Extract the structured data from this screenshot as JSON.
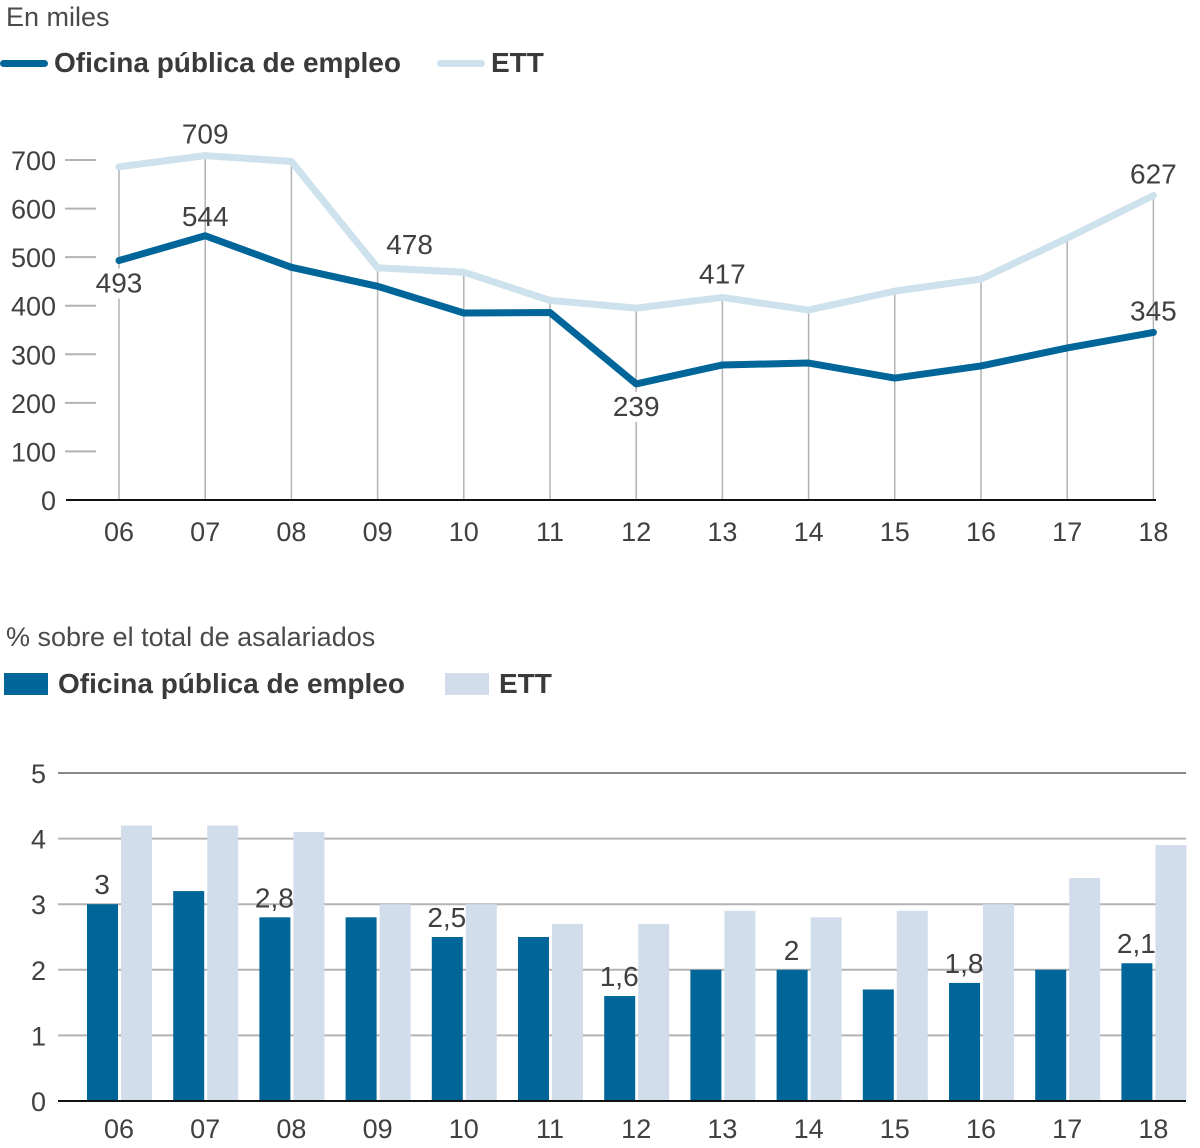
{
  "colors": {
    "oficina": "#006699",
    "ett_line": "#cde2ec",
    "ett_bar": "#d1ddeb",
    "grid": "#b3b3b3",
    "axis": "#111111"
  },
  "chart_data": [
    {
      "type": "line",
      "subtitle": "En miles",
      "legend": [
        "Oficina pública de empleo",
        "ETT"
      ],
      "legend_position": "top-left",
      "categories": [
        "06",
        "07",
        "08",
        "09",
        "10",
        "11",
        "12",
        "13",
        "14",
        "15",
        "16",
        "17",
        "18"
      ],
      "yticks": [
        "0",
        "100",
        "200",
        "300",
        "400",
        "500",
        "600",
        "700"
      ],
      "ylim": [
        0,
        700
      ],
      "grid": true,
      "series": [
        {
          "name": "Oficina pública de empleo",
          "values": [
            493,
            544,
            479,
            440,
            385,
            386,
            239,
            278,
            282,
            251,
            276,
            313,
            345
          ]
        },
        {
          "name": "ETT",
          "values": [
            686,
            709,
            697,
            478,
            469,
            411,
            395,
            417,
            391,
            430,
            455,
            539,
            627
          ]
        }
      ],
      "annotations": [
        {
          "series": 0,
          "index": 0,
          "text": "493"
        },
        {
          "series": 0,
          "index": 1,
          "text": "544"
        },
        {
          "series": 0,
          "index": 6,
          "text": "239"
        },
        {
          "series": 0,
          "index": 12,
          "text": "345"
        },
        {
          "series": 1,
          "index": 1,
          "text": "709"
        },
        {
          "series": 1,
          "index": 3,
          "text": "478"
        },
        {
          "series": 1,
          "index": 7,
          "text": "417"
        },
        {
          "series": 1,
          "index": 12,
          "text": "627"
        }
      ]
    },
    {
      "type": "bar",
      "subtitle": "% sobre el total de asalariados",
      "legend": [
        "Oficina pública de empleo",
        "ETT"
      ],
      "legend_position": "top-left",
      "categories": [
        "06",
        "07",
        "08",
        "09",
        "10",
        "11",
        "12",
        "13",
        "14",
        "15",
        "16",
        "17",
        "18"
      ],
      "yticks": [
        "0",
        "1",
        "2",
        "3",
        "4",
        "5"
      ],
      "ylim": [
        0,
        5
      ],
      "grid": true,
      "series": [
        {
          "name": "Oficina pública de empleo",
          "values": [
            3.0,
            3.2,
            2.8,
            2.8,
            2.5,
            2.5,
            1.6,
            2.0,
            2.0,
            1.7,
            1.8,
            2.0,
            2.1
          ]
        },
        {
          "name": "ETT",
          "values": [
            4.2,
            4.2,
            4.1,
            3.0,
            3.0,
            2.7,
            2.7,
            2.9,
            2.8,
            2.9,
            3.0,
            3.4,
            3.9
          ]
        }
      ],
      "annotations": [
        {
          "series": 0,
          "index": 0,
          "text": "3"
        },
        {
          "series": 0,
          "index": 2,
          "text": "2,8"
        },
        {
          "series": 0,
          "index": 4,
          "text": "2,5"
        },
        {
          "series": 0,
          "index": 6,
          "text": "1,6"
        },
        {
          "series": 0,
          "index": 8,
          "text": "2"
        },
        {
          "series": 0,
          "index": 10,
          "text": "1,8"
        },
        {
          "series": 0,
          "index": 12,
          "text": "2,1"
        }
      ]
    }
  ]
}
